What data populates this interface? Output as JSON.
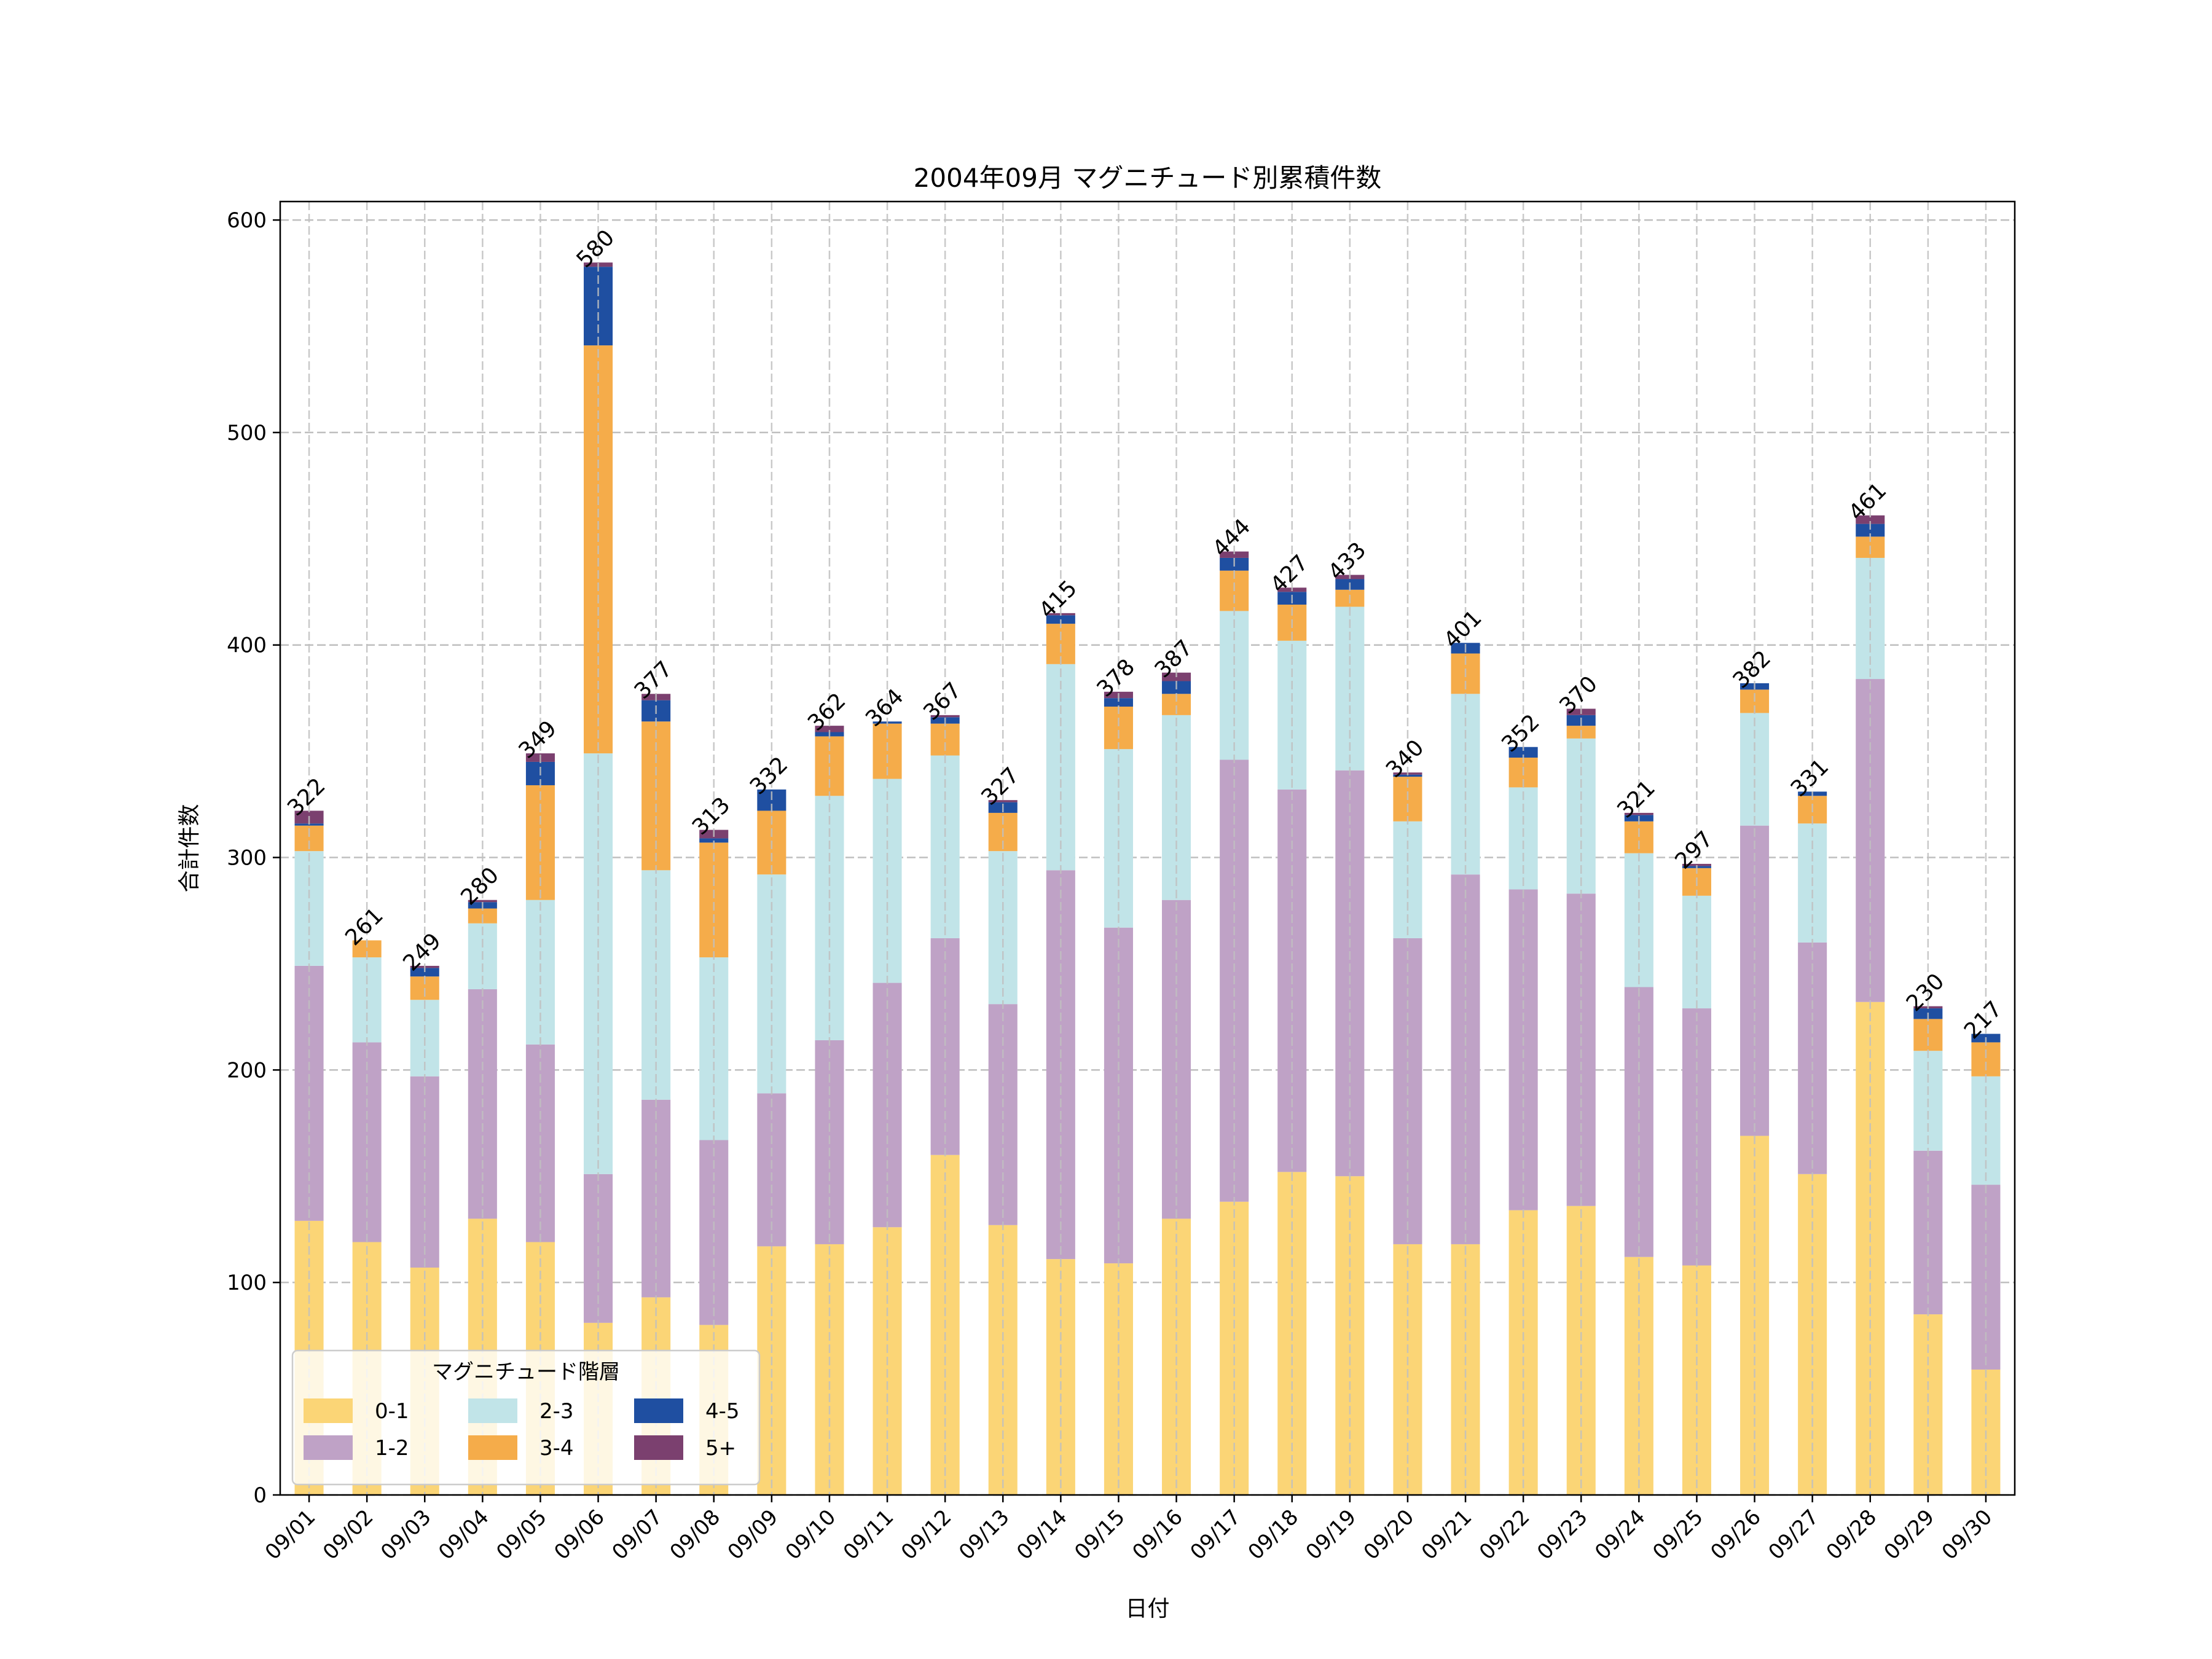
{
  "chart_data": {
    "type": "bar",
    "stacked": true,
    "title": "2004年09月 マグニチュード別累積件数",
    "xlabel": "日付",
    "ylabel": "合計件数",
    "ylim": [
      0,
      608.7
    ],
    "yticks": [
      0,
      100,
      200,
      300,
      400,
      500,
      600
    ],
    "grid": true,
    "legend_title": "マグニチュード階層",
    "legend_position": "lower-left",
    "categories": [
      "09/01",
      "09/02",
      "09/03",
      "09/04",
      "09/05",
      "09/06",
      "09/07",
      "09/08",
      "09/09",
      "09/10",
      "09/11",
      "09/12",
      "09/13",
      "09/14",
      "09/15",
      "09/16",
      "09/17",
      "09/18",
      "09/19",
      "09/20",
      "09/21",
      "09/22",
      "09/23",
      "09/24",
      "09/25",
      "09/26",
      "09/27",
      "09/28",
      "09/29",
      "09/30"
    ],
    "series": [
      {
        "name": "0-1",
        "color": "#FBD576",
        "values": [
          129,
          119,
          107,
          130,
          119,
          81,
          93,
          80,
          117,
          118,
          126,
          160,
          127,
          111,
          109,
          130,
          138,
          152,
          150,
          118,
          118,
          134,
          136,
          112,
          108,
          169,
          151,
          232,
          85,
          59
        ]
      },
      {
        "name": "1-2",
        "color": "#BFA2C6",
        "values": [
          120,
          94,
          90,
          108,
          93,
          70,
          93,
          87,
          72,
          96,
          115,
          102,
          104,
          183,
          158,
          150,
          208,
          180,
          191,
          144,
          174,
          151,
          147,
          127,
          121,
          146,
          109,
          152,
          77,
          87
        ]
      },
      {
        "name": "2-3",
        "color": "#C1E4E8",
        "values": [
          54,
          40,
          36,
          31,
          68,
          198,
          108,
          86,
          103,
          115,
          96,
          86,
          72,
          97,
          84,
          87,
          70,
          70,
          77,
          55,
          85,
          48,
          73,
          63,
          53,
          53,
          56,
          57,
          47,
          51
        ]
      },
      {
        "name": "3-4",
        "color": "#F5AC4A",
        "values": [
          12,
          8,
          11,
          7,
          54,
          192,
          70,
          54,
          30,
          28,
          26,
          15,
          18,
          19,
          20,
          10,
          19,
          17,
          8,
          21,
          19,
          14,
          6,
          15,
          13,
          11,
          13,
          10,
          15,
          16
        ]
      },
      {
        "name": "4-5",
        "color": "#1F4FA1",
        "values": [
          1,
          0,
          4,
          3,
          11,
          37,
          10,
          2,
          10,
          2,
          1,
          3,
          5,
          4,
          4,
          6,
          6,
          6,
          5,
          1,
          5,
          5,
          5,
          3,
          1,
          3,
          2,
          6,
          5,
          4
        ]
      },
      {
        "name": "5+",
        "color": "#7B406F",
        "values": [
          6,
          0,
          1,
          1,
          4,
          2,
          3,
          4,
          0,
          3,
          0,
          1,
          1,
          1,
          3,
          4,
          3,
          2,
          2,
          1,
          0,
          0,
          3,
          1,
          1,
          0,
          0,
          4,
          1,
          0
        ]
      }
    ],
    "totals": [
      322,
      261,
      249,
      280,
      349,
      580,
      377,
      313,
      332,
      362,
      364,
      367,
      327,
      415,
      378,
      387,
      444,
      427,
      433,
      340,
      401,
      352,
      370,
      321,
      297,
      382,
      331,
      461,
      230,
      217
    ]
  }
}
